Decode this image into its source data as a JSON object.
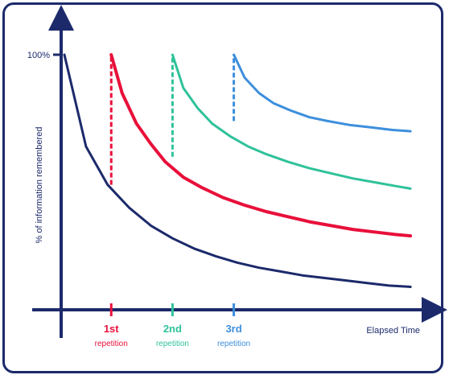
{
  "chart_data": {
    "type": "line",
    "title": "",
    "xlabel": "Elapsed Time",
    "ylabel": "% of information remembered",
    "y_tick_labels": [
      "100%"
    ],
    "event_labels": [
      {
        "line1": "1st",
        "line2": "repetition",
        "color": "#e8103a"
      },
      {
        "line1": "2nd",
        "line2": "repetition",
        "color": "#2fc29a"
      },
      {
        "line1": "3rd",
        "line2": "repetition",
        "color": "#3d8fdc"
      }
    ],
    "xlim": [
      0,
      10
    ],
    "ylim": [
      0,
      100
    ],
    "series": [
      {
        "color": "#1c2a6b",
        "x": [
          0,
          0.6,
          1.2,
          1.8,
          2.4,
          3.0,
          3.6,
          4.2,
          4.8,
          5.4,
          6.0,
          6.6,
          7.2,
          7.8,
          8.4,
          9.0,
          9.6
        ],
        "values": [
          100,
          64,
          49,
          40,
          33,
          28,
          24,
          21,
          18.5,
          16.5,
          15,
          13.5,
          12.5,
          11.5,
          10.5,
          9.5,
          9
        ]
      },
      {
        "color": "#e8103a",
        "x": [
          1.3,
          1.6,
          2.0,
          2.4,
          2.8,
          3.3,
          3.8,
          4.4,
          5.0,
          5.6,
          6.2,
          6.8,
          7.4,
          8.0,
          8.6,
          9.2,
          9.6
        ],
        "values": [
          100,
          85,
          73,
          65,
          58,
          52,
          48,
          44,
          41,
          38.5,
          36.5,
          34.5,
          33,
          31.5,
          30.5,
          29.5,
          29
        ]
      },
      {
        "color": "#2fc29a",
        "x": [
          3.0,
          3.3,
          3.7,
          4.1,
          4.6,
          5.1,
          5.6,
          6.2,
          6.8,
          7.4,
          8.0,
          8.6,
          9.2,
          9.6
        ],
        "values": [
          100,
          87,
          79,
          73,
          68,
          64,
          61,
          58,
          55.5,
          53.5,
          51.5,
          50,
          48.5,
          47.5
        ]
      },
      {
        "color": "#3d8fdc",
        "x": [
          4.7,
          5.0,
          5.4,
          5.8,
          6.3,
          6.8,
          7.3,
          7.9,
          8.5,
          9.1,
          9.6
        ],
        "values": [
          100,
          91,
          85,
          81,
          78,
          75.5,
          74,
          72.5,
          71.5,
          70.5,
          70
        ]
      }
    ],
    "repetitions": [
      {
        "x": 1.3,
        "from": 49,
        "to": 100,
        "color": "#e8103a"
      },
      {
        "x": 3.0,
        "from": 60,
        "to": 100,
        "color": "#2fc29a"
      },
      {
        "x": 4.7,
        "from": 74,
        "to": 100,
        "color": "#3d8fdc"
      }
    ],
    "grid": false,
    "legend": "none"
  }
}
